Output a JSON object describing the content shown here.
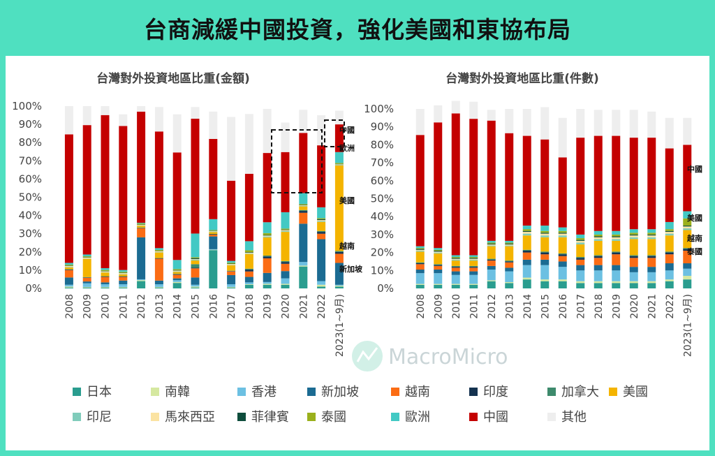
{
  "page": {
    "title": "台商減緩中國投資，強化美國和東協布局",
    "watermark": "MacroMicro"
  },
  "colors": {
    "日本": "#2a9d8f",
    "南韓": "#d5e8a0",
    "香港": "#6cc0e2",
    "新加坡": "#1b6b92",
    "越南": "#fb6c14",
    "印度": "#14324f",
    "加拿大": "#3d8a6c",
    "美國": "#f4b400",
    "印尼": "#80ccbb",
    "馬來西亞": "#fbe3a2",
    "菲律賓": "#0e4d3c",
    "泰國": "#9ab01c",
    "歐洲": "#42c9c4",
    "中國": "#c40000",
    "其他": "#eeeeee"
  },
  "legend": {
    "items": [
      "日本",
      "南韓",
      "香港",
      "新加坡",
      "越南",
      "印度",
      "加拿大",
      "美國",
      "印尼",
      "馬來西亞",
      "菲律賓",
      "泰國",
      "歐洲",
      "中國",
      "其他"
    ]
  },
  "chart_data": [
    {
      "type": "bar",
      "stacked": true,
      "title": "台灣對外投資地區比重(金額)",
      "xlabel": "",
      "ylabel": "",
      "ylim": [
        0,
        100
      ],
      "y_ticks": [
        "0%",
        "10%",
        "20%",
        "30%",
        "40%",
        "50%",
        "60%",
        "70%",
        "80%",
        "90%",
        "100%"
      ],
      "categories": [
        "2008",
        "2009",
        "2010",
        "2011",
        "2012",
        "2013",
        "2014",
        "2015",
        "2016",
        "2017",
        "2018",
        "2019",
        "2020",
        "2021",
        "2022",
        "2023(1~9月)"
      ],
      "series": [
        {
          "name": "日本",
          "values": [
            0.5,
            0.5,
            0.5,
            0.5,
            4,
            0.5,
            3,
            0.5,
            21,
            0.5,
            2,
            2,
            2,
            12,
            1,
            1
          ]
        },
        {
          "name": "南韓",
          "values": [
            0.5,
            0.3,
            0.3,
            0.3,
            0.5,
            0.3,
            0.5,
            0.5,
            0.2,
            0.3,
            0.3,
            0.5,
            0.5,
            0.5,
            1,
            0.5
          ]
        },
        {
          "name": "香港",
          "values": [
            1,
            2,
            1.5,
            1.5,
            0.5,
            1.5,
            1,
            1,
            0.3,
            1.5,
            1,
            1,
            3,
            2,
            2,
            0.5
          ]
        },
        {
          "name": "新加坡",
          "values": [
            4,
            1,
            1,
            2,
            23,
            2,
            1,
            4,
            7,
            5,
            3,
            5,
            4,
            21,
            23,
            12
          ]
        },
        {
          "name": "越南",
          "values": [
            4,
            2,
            3,
            2,
            5,
            12,
            2,
            5,
            1,
            2,
            3,
            8,
            4,
            6,
            3,
            5
          ]
        },
        {
          "name": "印度",
          "values": [
            0.3,
            0.2,
            0.2,
            0.2,
            0.2,
            0.2,
            0.3,
            0.3,
            0.2,
            0.2,
            1,
            1,
            1,
            1,
            1,
            1
          ]
        },
        {
          "name": "加拿大",
          "values": [
            0.2,
            0.2,
            0.2,
            0.2,
            0.2,
            0.2,
            0.2,
            2,
            0.2,
            0.2,
            0.5,
            0.5,
            0.5,
            0.5,
            0.5,
            0.5
          ]
        },
        {
          "name": "美國",
          "values": [
            1,
            10,
            2,
            1,
            1,
            3,
            1,
            2,
            1,
            3,
            8,
            10,
            16,
            2,
            5,
            47
          ]
        },
        {
          "name": "印尼",
          "values": [
            0.3,
            0.2,
            0.2,
            0.2,
            0.2,
            0.2,
            0.3,
            0.5,
            0.3,
            0.2,
            0.3,
            0.5,
            0.5,
            0.3,
            0.5,
            0.3
          ]
        },
        {
          "name": "馬來西亞",
          "values": [
            0.5,
            0.5,
            0.5,
            0.5,
            0.3,
            0.5,
            0.5,
            0.3,
            0.3,
            0.5,
            0.5,
            0.5,
            0.5,
            0.3,
            0.5,
            0.3
          ]
        },
        {
          "name": "菲律賓",
          "values": [
            0.2,
            0.2,
            0.2,
            0.2,
            0.2,
            0.2,
            0.3,
            0.5,
            0.2,
            0.2,
            0.3,
            0.3,
            0.3,
            0.2,
            0.5,
            0.2
          ]
        },
        {
          "name": "泰國",
          "values": [
            0.5,
            0.5,
            0.5,
            0.5,
            0.5,
            0.5,
            0.5,
            0.5,
            0.3,
            0.5,
            1,
            1,
            0.5,
            0.5,
            0.5,
            0.5
          ]
        },
        {
          "name": "歐洲",
          "values": [
            1,
            1,
            1,
            1,
            0.4,
            1,
            5,
            13,
            6,
            1,
            5,
            6,
            9,
            6,
            6,
            6
          ]
        },
        {
          "name": "中國",
          "values": [
            70.5,
            71,
            84,
            79,
            61,
            64,
            59,
            63,
            44,
            44,
            37,
            38,
            33,
            33,
            34,
            15.2
          ]
        },
        {
          "name": "其他",
          "values": [
            15.5,
            10.4,
            4.9,
            6.4,
            3,
            13.4,
            20.9,
            6.4,
            15,
            35,
            32.8,
            24.2,
            16.2,
            12.7,
            16.5,
            7.5
          ]
        }
      ],
      "annotations": [
        "中國",
        "歐洲",
        "美國",
        "越南",
        "新加坡"
      ]
    },
    {
      "type": "bar",
      "stacked": true,
      "title": "台灣對外投資地區比重(件數)",
      "xlabel": "",
      "ylabel": "",
      "ylim": [
        0,
        100
      ],
      "y_ticks": [
        "0%",
        "10%",
        "20%",
        "30%",
        "40%",
        "50%",
        "60%",
        "70%",
        "80%",
        "90%",
        "100%"
      ],
      "categories": [
        "2008",
        "2009",
        "2010",
        "2011",
        "2012",
        "2013",
        "2014",
        "2015",
        "2016",
        "2017",
        "2018",
        "2019",
        "2020",
        "2021",
        "2022",
        "2023(1~9月)"
      ],
      "series": [
        {
          "name": "日本",
          "values": [
            2,
            2,
            2,
            2,
            4,
            3,
            5,
            4,
            4,
            3,
            3,
            3,
            3,
            3,
            4,
            5
          ]
        },
        {
          "name": "南韓",
          "values": [
            0.5,
            0.5,
            0.5,
            0.5,
            0.5,
            0.5,
            1,
            1,
            1,
            1,
            1,
            1,
            1,
            1,
            1,
            2
          ]
        },
        {
          "name": "香港",
          "values": [
            6,
            6,
            5,
            5,
            6,
            6,
            7,
            8,
            7,
            6,
            6,
            6,
            5,
            5,
            5,
            4
          ]
        },
        {
          "name": "新加坡",
          "values": [
            2,
            2,
            2,
            2,
            2,
            2,
            3,
            3,
            3,
            3,
            3,
            3,
            3,
            3,
            4,
            3
          ]
        },
        {
          "name": "越南",
          "values": [
            3,
            2,
            2,
            2,
            3,
            3,
            4,
            3,
            3,
            3,
            4,
            6,
            5,
            5,
            5,
            7
          ]
        },
        {
          "name": "印度",
          "values": [
            0.5,
            0.5,
            0.5,
            0.5,
            0.5,
            0.5,
            1,
            1,
            1,
            1,
            1,
            1,
            1,
            1,
            1,
            1
          ]
        },
        {
          "name": "加拿大",
          "values": [
            0.5,
            0.5,
            0.5,
            0.5,
            0.5,
            0.5,
            0.5,
            0.5,
            0.5,
            0.5,
            0.5,
            0.5,
            0.5,
            0.5,
            0.5,
            0.5
          ]
        },
        {
          "name": "美國",
          "values": [
            6,
            6,
            3,
            3,
            7,
            8,
            8,
            8,
            9,
            7,
            8,
            6,
            9,
            9,
            9,
            10
          ]
        },
        {
          "name": "印尼",
          "values": [
            0.5,
            0.5,
            0.5,
            0.5,
            0.5,
            0.5,
            1,
            1,
            1,
            1,
            1,
            1,
            1,
            1,
            1,
            1
          ]
        },
        {
          "name": "馬來西亞",
          "values": [
            0.5,
            0.5,
            0.5,
            0.5,
            0.5,
            0.5,
            1,
            1,
            1,
            1,
            1,
            1,
            1,
            1,
            1,
            1
          ]
        },
        {
          "name": "菲律賓",
          "values": [
            0.5,
            0.5,
            0.5,
            0.5,
            0.5,
            0.5,
            0.5,
            0.5,
            0.5,
            0.5,
            0.5,
            0.5,
            0.5,
            0.5,
            0.5,
            0.5
          ]
        },
        {
          "name": "泰國",
          "values": [
            0.5,
            0.5,
            0.5,
            0.5,
            0.5,
            0.5,
            1,
            1,
            1,
            1,
            1,
            1,
            1,
            1,
            1,
            4
          ]
        },
        {
          "name": "歐洲",
          "values": [
            1,
            1,
            1,
            1,
            1,
            1,
            2,
            3,
            2,
            2,
            2,
            2,
            2,
            2,
            4,
            4
          ]
        },
        {
          "name": "中國",
          "values": [
            62,
            70,
            79,
            76,
            67,
            60,
            50,
            48,
            39,
            54,
            53,
            53,
            51,
            51,
            41,
            37
          ]
        },
        {
          "name": "其他",
          "values": [
            14.5,
            9.5,
            7,
            9.5,
            6,
            13.5,
            15,
            18,
            22,
            16,
            14.5,
            14.5,
            15.5,
            14.5,
            17,
            15
          ]
        }
      ],
      "annotations": [
        "中國",
        "美國",
        "越南",
        "泰國"
      ]
    }
  ]
}
